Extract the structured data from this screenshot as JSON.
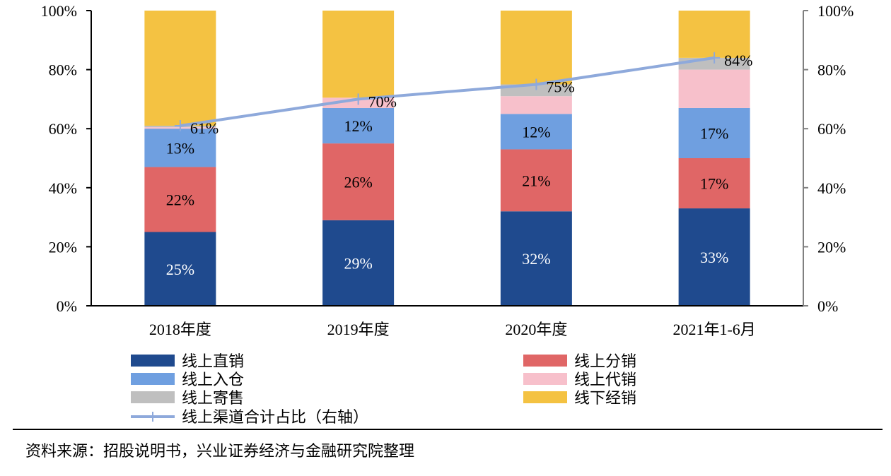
{
  "chart_data": {
    "type": "bar",
    "stacked": true,
    "categories": [
      "2018年度",
      "2019年度",
      "2020年度",
      "2021年1-6月"
    ],
    "ylim": [
      0,
      100
    ],
    "y_ticks": [
      "0%",
      "20%",
      "40%",
      "60%",
      "80%",
      "100%"
    ],
    "y2_ticks": [
      "0%",
      "20%",
      "40%",
      "60%",
      "80%",
      "100%"
    ],
    "y2lim": [
      0,
      100
    ],
    "grid": false,
    "legend_position": "bottom",
    "series": [
      {
        "name": "线上直销",
        "color": "#1F4A8E",
        "values": [
          25,
          29,
          32,
          33
        ],
        "labels": [
          "25%",
          "29%",
          "32%",
          "33%"
        ],
        "label_color": "#ffffff"
      },
      {
        "name": "线上分销",
        "color": "#E06666",
        "values": [
          22,
          26,
          21,
          17
        ],
        "labels": [
          "22%",
          "26%",
          "21%",
          "17%"
        ],
        "label_color": "#000000"
      },
      {
        "name": "线上入仓",
        "color": "#6F9FE0",
        "values": [
          13,
          12,
          12,
          17
        ],
        "labels": [
          "13%",
          "12%",
          "12%",
          "17%"
        ],
        "label_color": "#000000"
      },
      {
        "name": "线上代销",
        "color": "#F7C0CB",
        "values": [
          0.5,
          3.5,
          6,
          13
        ],
        "labels": [
          "",
          "",
          "",
          ""
        ],
        "label_color": "#000000"
      },
      {
        "name": "线上寄售",
        "color": "#BFBFBF",
        "values": [
          0.5,
          0,
          4,
          4
        ],
        "labels": [
          "",
          "",
          "",
          ""
        ],
        "label_color": "#000000"
      },
      {
        "name": "线下经销",
        "color": "#F4C242",
        "values": [
          39,
          29.5,
          25,
          16
        ],
        "labels": [
          "",
          "",
          "",
          ""
        ],
        "label_color": "#000000"
      }
    ],
    "line_series": {
      "name": "线上渠道合计占比（右轴）",
      "color": "#8EA9DB",
      "axis": "right",
      "values": [
        61,
        70,
        75,
        84
      ],
      "labels": [
        "61%",
        "70%",
        "75%",
        "84%"
      ]
    },
    "legend": [
      {
        "name": "线上直销",
        "color": "#1F4A8E",
        "kind": "box"
      },
      {
        "name": "线上分销",
        "color": "#E06666",
        "kind": "box"
      },
      {
        "name": "线上入仓",
        "color": "#6F9FE0",
        "kind": "box"
      },
      {
        "name": "线上代销",
        "color": "#F7C0CB",
        "kind": "box"
      },
      {
        "name": "线上寄售",
        "color": "#BFBFBF",
        "kind": "box"
      },
      {
        "name": "线下经销",
        "color": "#F4C242",
        "kind": "box"
      },
      {
        "name": "线上渠道合计占比（右轴）",
        "color": "#8EA9DB",
        "kind": "line"
      }
    ]
  },
  "source": "资料来源：招股说明书，兴业证券经济与金融研究院整理"
}
